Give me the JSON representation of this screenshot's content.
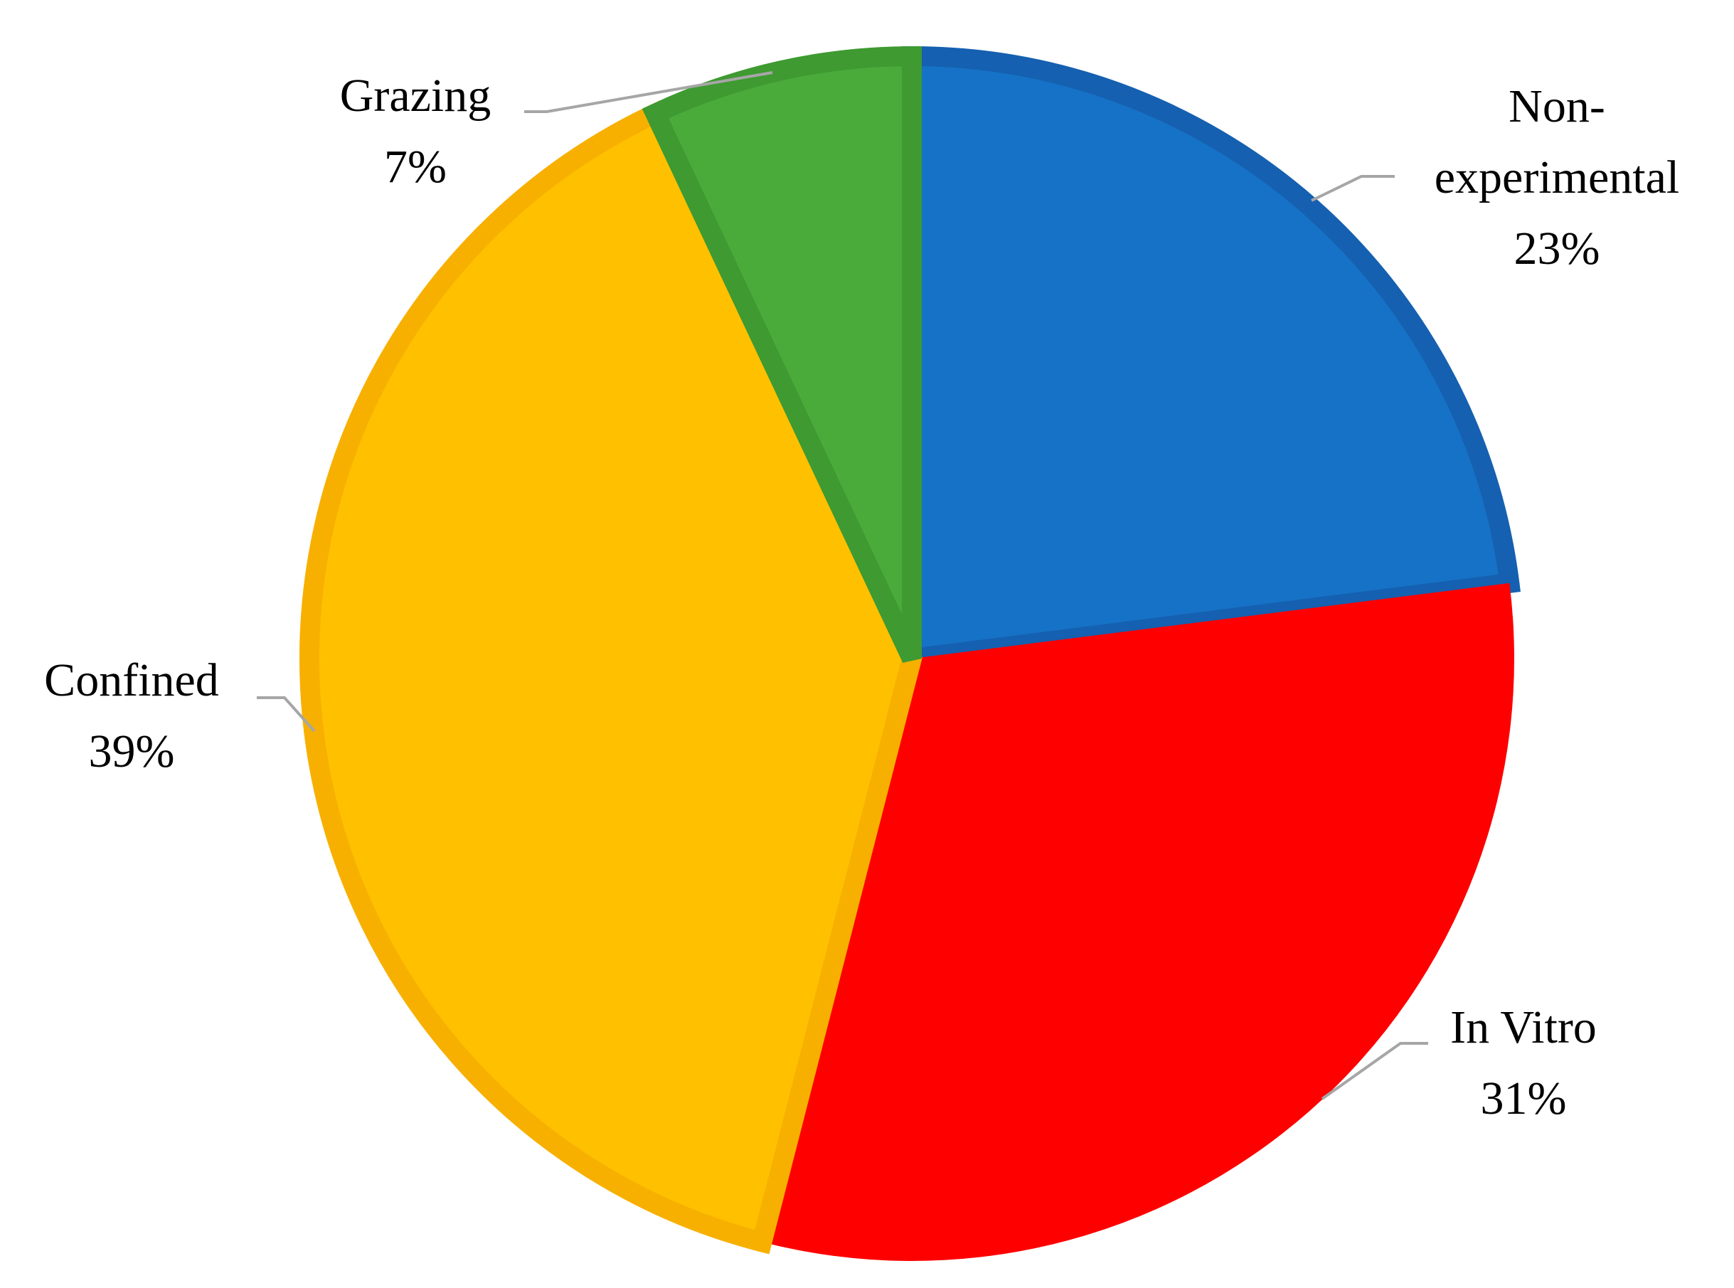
{
  "chart_data": {
    "type": "pie",
    "categories": [
      "Non-experimental",
      "In Vitro",
      "Confined",
      "Grazing"
    ],
    "values": [
      23,
      31,
      39,
      7
    ],
    "value_labels": [
      "23%",
      "31%",
      "39%",
      "7%"
    ],
    "colors": [
      "#1672c6",
      "#ff0000",
      "#ffc000",
      "#4aab3b"
    ]
  }
}
